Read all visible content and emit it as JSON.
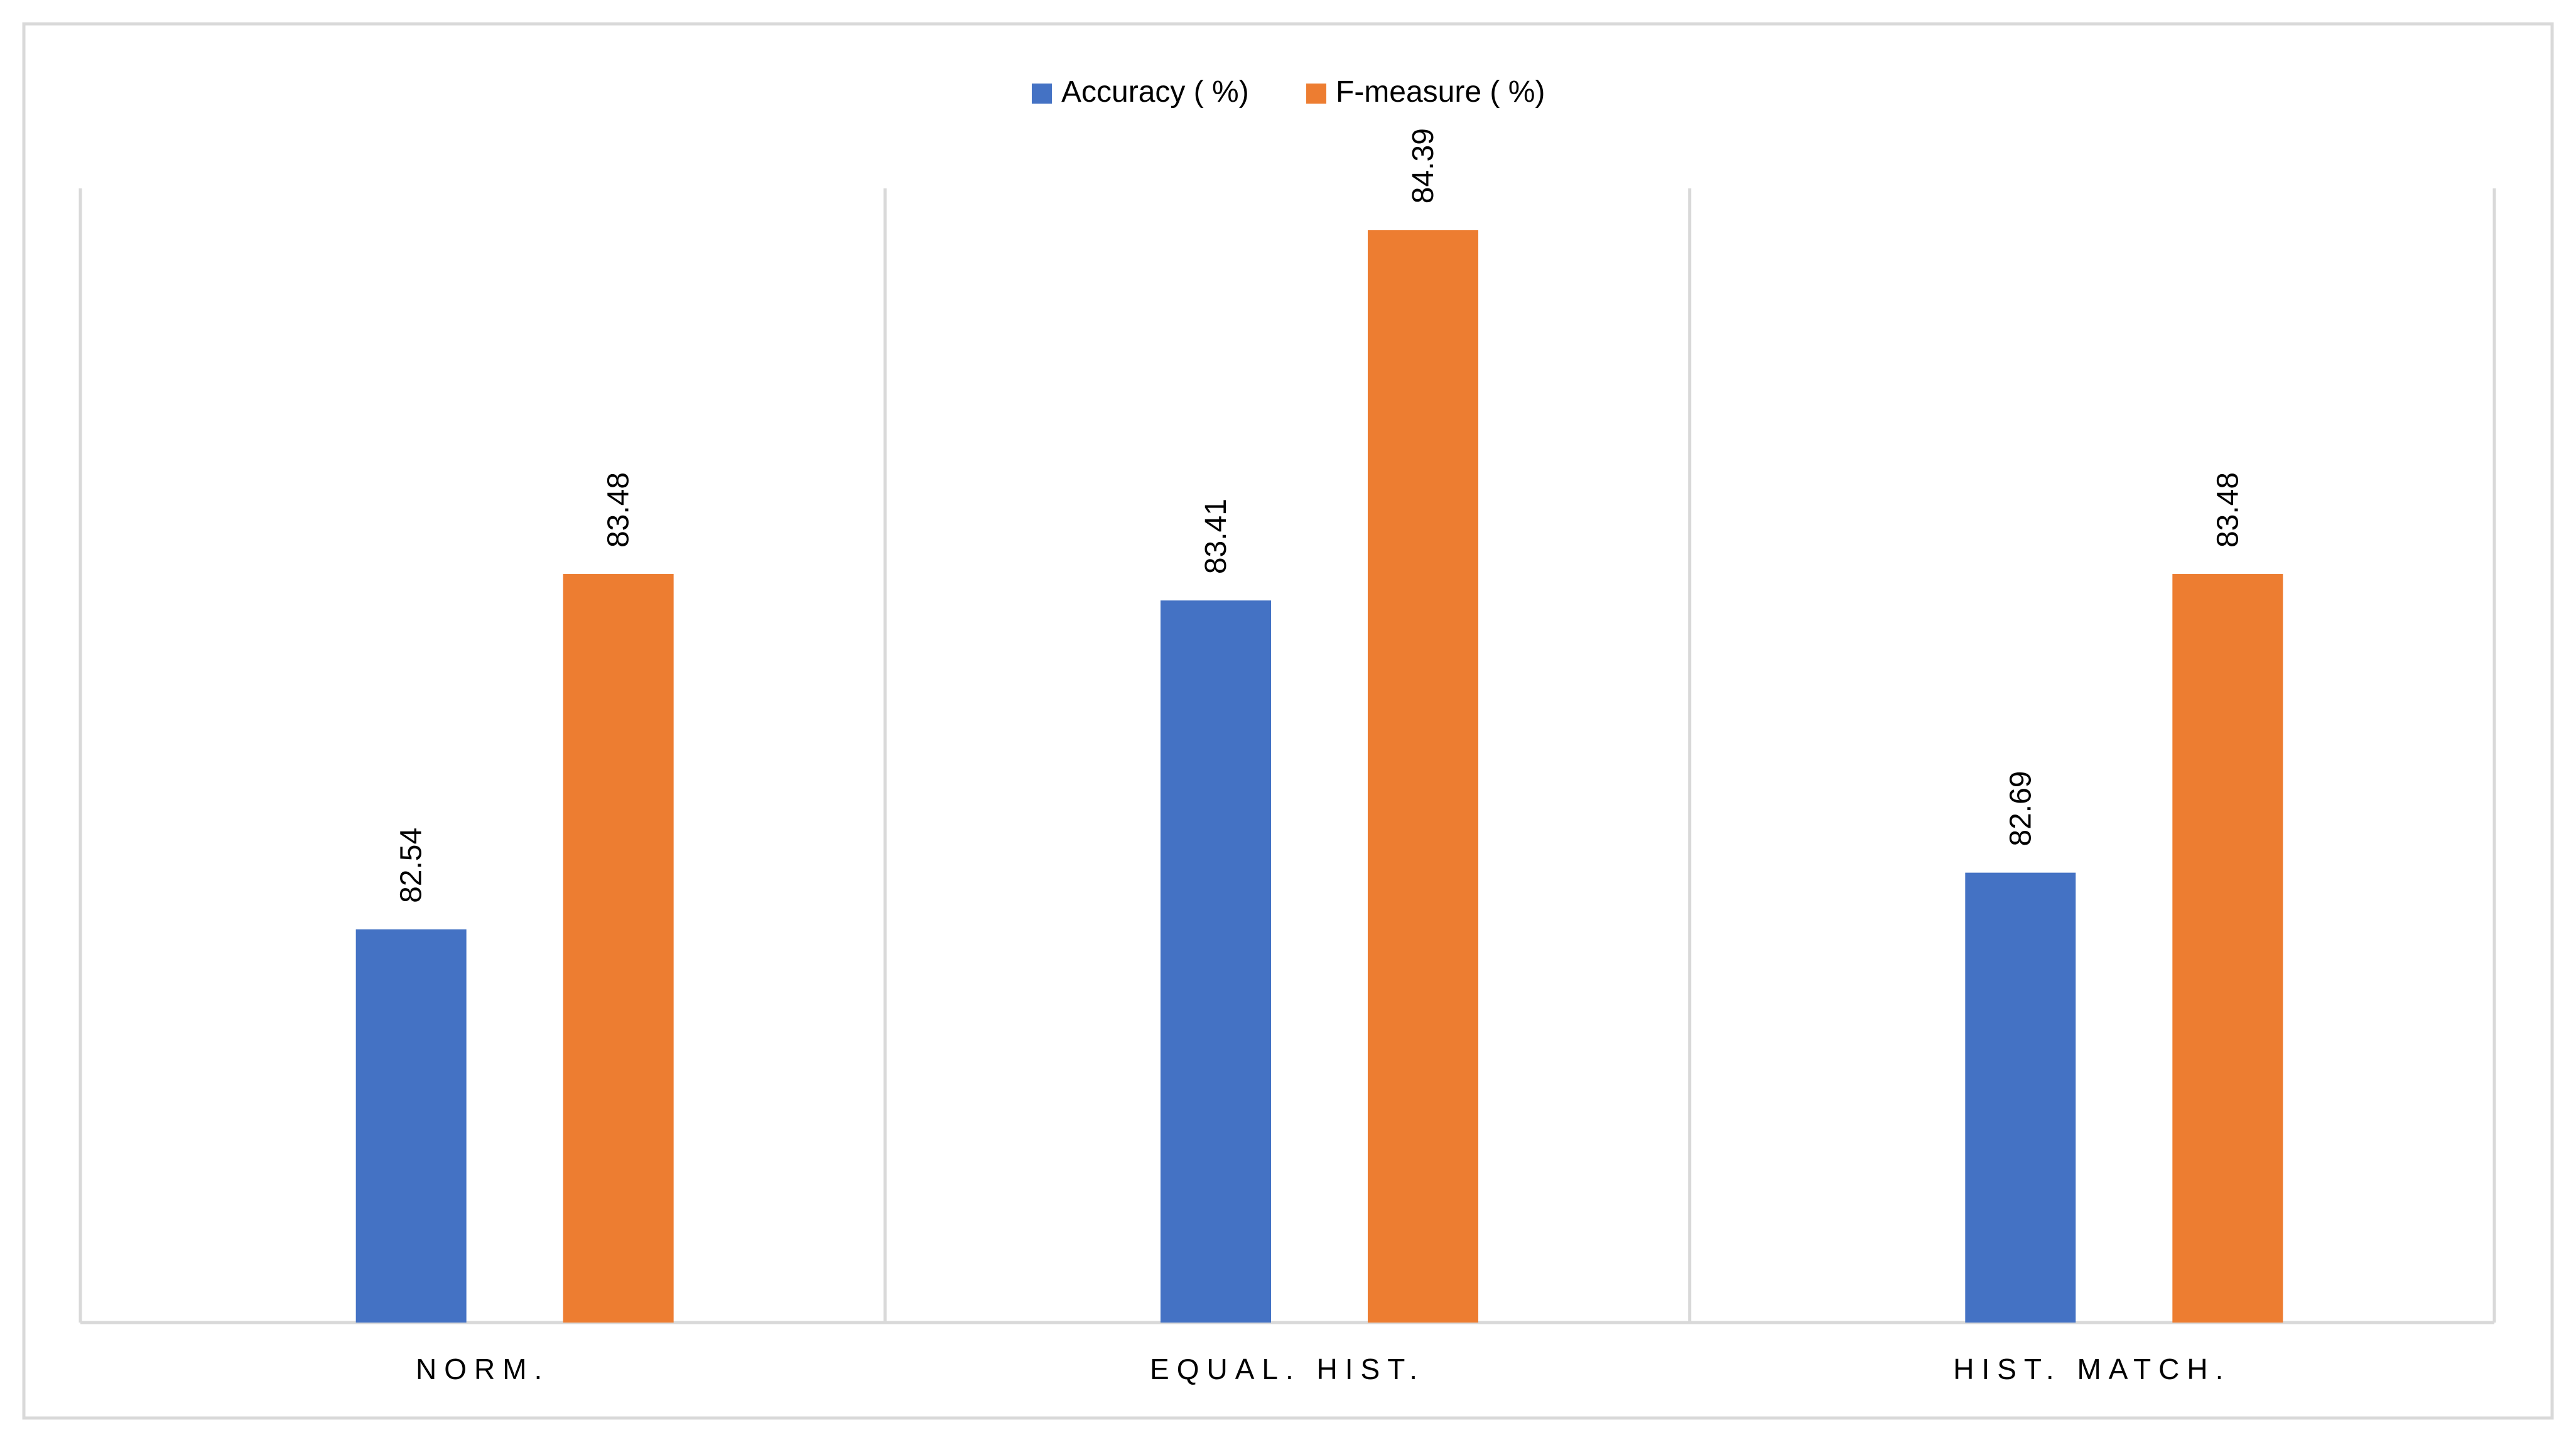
{
  "chart_data": {
    "type": "bar",
    "title": "",
    "xlabel": "",
    "ylabel": "",
    "categories": [
      "NORM.",
      "EQUAL. HIST.",
      "HIST. MATCH."
    ],
    "series": [
      {
        "name": "Accuracy ( %)",
        "color": "#4472C4",
        "values": [
          82.54,
          83.41,
          82.69
        ],
        "labels": [
          "82.54",
          "83.41",
          "82.69"
        ]
      },
      {
        "name": "F-measure ( %)",
        "color": "#ED7D31",
        "values": [
          83.48,
          84.39,
          83.48
        ],
        "labels": [
          "83.48",
          "84.39",
          "83.48"
        ]
      }
    ],
    "ylim": [
      81.5,
      84.5
    ],
    "grid": false,
    "legend_position": "top-center",
    "data_labels": "vertical-above-bars"
  }
}
